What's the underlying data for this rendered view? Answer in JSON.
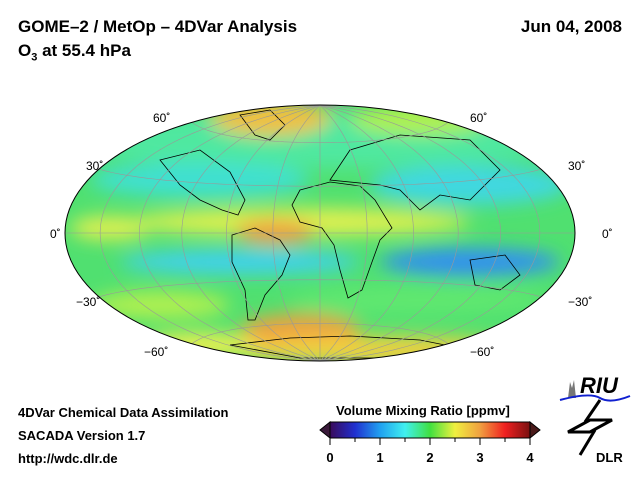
{
  "header": {
    "title": "GOME–2 / MetOp – 4DVar Analysis",
    "subtitle_base": "O",
    "subtitle_sub": "3",
    "subtitle_rest": " at 55.4 hPa",
    "date": "Jun 04, 2008"
  },
  "grid_labels": {
    "lat60": "60˚",
    "lat30": "30˚",
    "lat0": "0˚",
    "latm30": "−30˚",
    "latm60": "−60˚"
  },
  "footer": {
    "line1": "4DVar Chemical Data Assimilation",
    "line2": "SACADA Version 1.7",
    "line3": "http://wdc.dlr.de"
  },
  "colorbar": {
    "title": "Volume Mixing Ratio [ppmv]",
    "ticks": [
      "0",
      "1",
      "2",
      "3",
      "4"
    ],
    "range": [
      0,
      4
    ],
    "colors": [
      "#3a0a5a",
      "#2030d0",
      "#20a0f0",
      "#40f0f0",
      "#40e040",
      "#f0f040",
      "#f0a040",
      "#f02020",
      "#7a1010"
    ]
  },
  "logos": {
    "riu": "RIU",
    "dlr": "DLR"
  }
}
